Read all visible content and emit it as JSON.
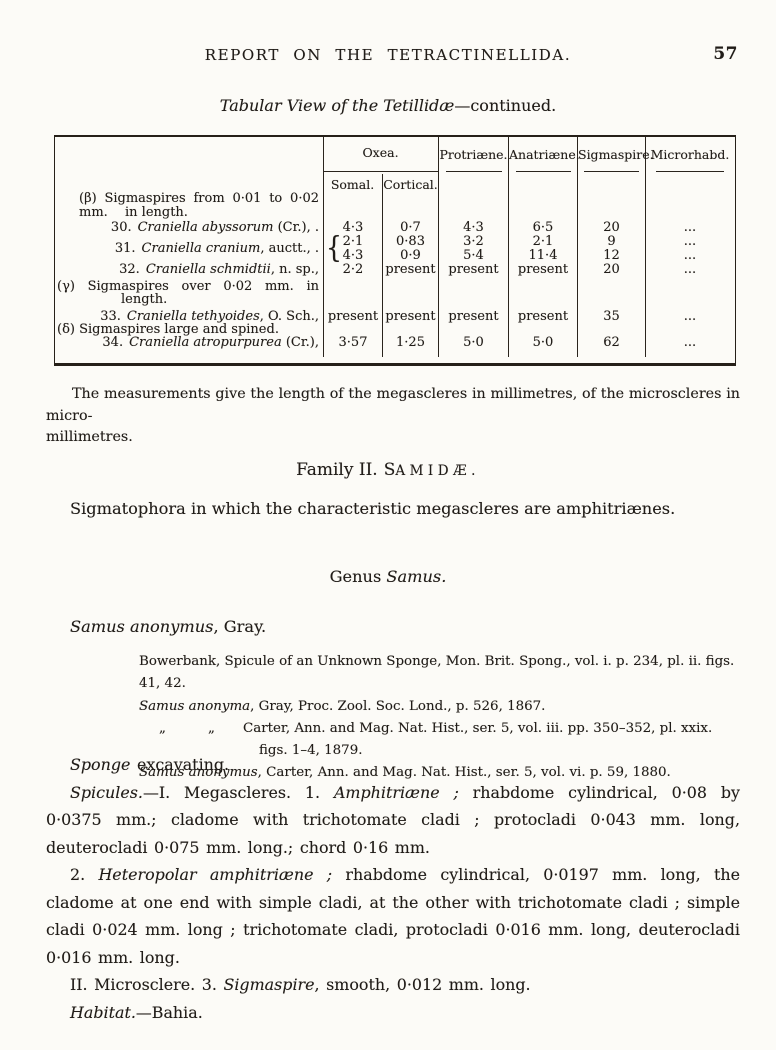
{
  "page": {
    "paper_color": "#fcfbf7",
    "ink_color": "#201c18"
  },
  "header": {
    "running_head": "REPORT ON THE TETRACTINELLIDA.",
    "page_number": "57"
  },
  "table": {
    "caption_italic": "Tabular View of the Tetillidæ",
    "caption_roman": "—continued.",
    "headers": {
      "oxea": "Oxea.",
      "somal": "Somal.",
      "cortical": "Cortical.",
      "protriaene": "Protriæne.",
      "anatriaene": "Anatriæne.",
      "sigmaspire": "Sigmaspire.",
      "microrhabd": "Microrhabd."
    },
    "groups": {
      "beta": {
        "line1": "(β) Sigmaspires from 0·01 to 0·02 mm.",
        "line2": "in length."
      },
      "gamma": {
        "line1": "(γ) Sigmaspires over 0·02 mm. in",
        "line2": "length."
      },
      "delta": {
        "line1": "(δ) Sigmaspires large and spined."
      }
    },
    "rows": {
      "r30": {
        "num": "30.",
        "name": "Craniella abyssorum",
        "tail": " (Cr.), .",
        "somal": "4·3",
        "cortical": "0·7",
        "protriaene": "4·3",
        "anatriaene": "6·5",
        "sigmaspire": "20",
        "microrhabd": "..."
      },
      "r31": {
        "num": "31.",
        "name": "Craniella cranium",
        "tail": ", auctt., .",
        "brace": "{",
        "a": {
          "somal": "2·1",
          "cortical": "0·83",
          "protriaene": "3·2",
          "anatriaene": "2·1",
          "sigmaspire": "9",
          "microrhabd": "..."
        },
        "b": {
          "somal": "4·3",
          "cortical": "0·9",
          "protriaene": "5·4",
          "anatriaene": "11·4",
          "sigmaspire": "12",
          "microrhabd": "..."
        }
      },
      "r32": {
        "num": "32.",
        "name": "Craniella schmidtii",
        "tail": ", n. sp.,",
        "somal": "2·2",
        "cortical": "present",
        "protriaene": "present",
        "anatriaene": "present",
        "sigmaspire": "20",
        "microrhabd": "..."
      },
      "r33": {
        "num": "33.",
        "name": "Craniella tethyoides",
        "tail": ", O. Sch.,",
        "somal": "present",
        "cortical": "present",
        "protriaene": "present",
        "anatriaene": "present",
        "sigmaspire": "35",
        "microrhabd": "..."
      },
      "r34": {
        "num": "34.",
        "name": "Craniella atropurpurea",
        "tail": " (Cr.),",
        "somal": "3·57",
        "cortical": "1·25",
        "protriaene": "5·0",
        "anatriaene": "5·0",
        "sigmaspire": "62",
        "microrhabd": "..."
      }
    }
  },
  "note": {
    "line1": "The measurements give the length of the megascleres in millimetres, of the microscleres in micro-",
    "line2": "millimetres."
  },
  "family": {
    "prefix": "Family II.",
    "caps_initial": "S",
    "caps_rest": "AMIDÆ."
  },
  "diagnosis": "Sigmatophora in which the characteristic megascleres are amphitriænes.",
  "genus": {
    "prefix": "Genus ",
    "name_italic": "Samus."
  },
  "species": {
    "name_italic": "Samus anonymus",
    "author": ", Gray."
  },
  "synonymy": {
    "line1": "Bowerbank, Spicule of an Unknown Sponge, Mon. Brit. Spong., vol. i. p. 234, pl. ii. figs. 41, 42.",
    "line2_italic": "Samus anonyma",
    "line2_roman": ", Gray, Proc. Zool. Soc. Lond., p. 526, 1867.",
    "ditto": "„",
    "line3": "Carter, Ann. and Mag. Nat. Hist., ser. 5, vol. iii. pp. 350–352, pl. xxix.",
    "line4": "figs. 1–4, 1879.",
    "line5_italic": "Samus anonymus",
    "line5_roman": ", Carter, Ann. and Mag. Nat. Hist., ser. 5, vol. vi. p. 59, 1880."
  },
  "body": {
    "p1": [
      {
        "i": 1,
        "t": "Sponge"
      },
      {
        "i": 0,
        "t": " excavating."
      }
    ],
    "p2": [
      {
        "i": 1,
        "t": "Spicules."
      },
      {
        "i": 0,
        "t": "—I. Megascleres.  1. "
      },
      {
        "i": 1,
        "t": "Amphitriæne ;"
      },
      {
        "i": 0,
        "t": " rhabdome cylindrical, 0·08 by 0·0375 mm.; cladome with trichotomate cladi ; protocladi 0·043 mm. long, deuterocladi 0·075 mm. long.; chord 0·16 mm."
      }
    ],
    "p3": [
      {
        "i": 0,
        "t": "2. "
      },
      {
        "i": 1,
        "t": "Heteropolar amphitriæne ;"
      },
      {
        "i": 0,
        "t": " rhabdome cylindrical, 0·0197 mm. long, the cladome at one end with simple cladi, at the other with trichotomate cladi ; simple cladi 0·024 mm. long ; trichotomate cladi, protocladi 0·016 mm. long, deuterocladi 0·016 mm. long."
      }
    ],
    "p4": [
      {
        "i": 0,
        "t": "II. Microsclere.  3. "
      },
      {
        "i": 1,
        "t": "Sigmaspire"
      },
      {
        "i": 0,
        "t": ", smooth, 0·012 mm. long."
      }
    ],
    "p5": [
      {
        "i": 1,
        "t": "Habitat."
      },
      {
        "i": 0,
        "t": "—Bahia."
      }
    ]
  }
}
